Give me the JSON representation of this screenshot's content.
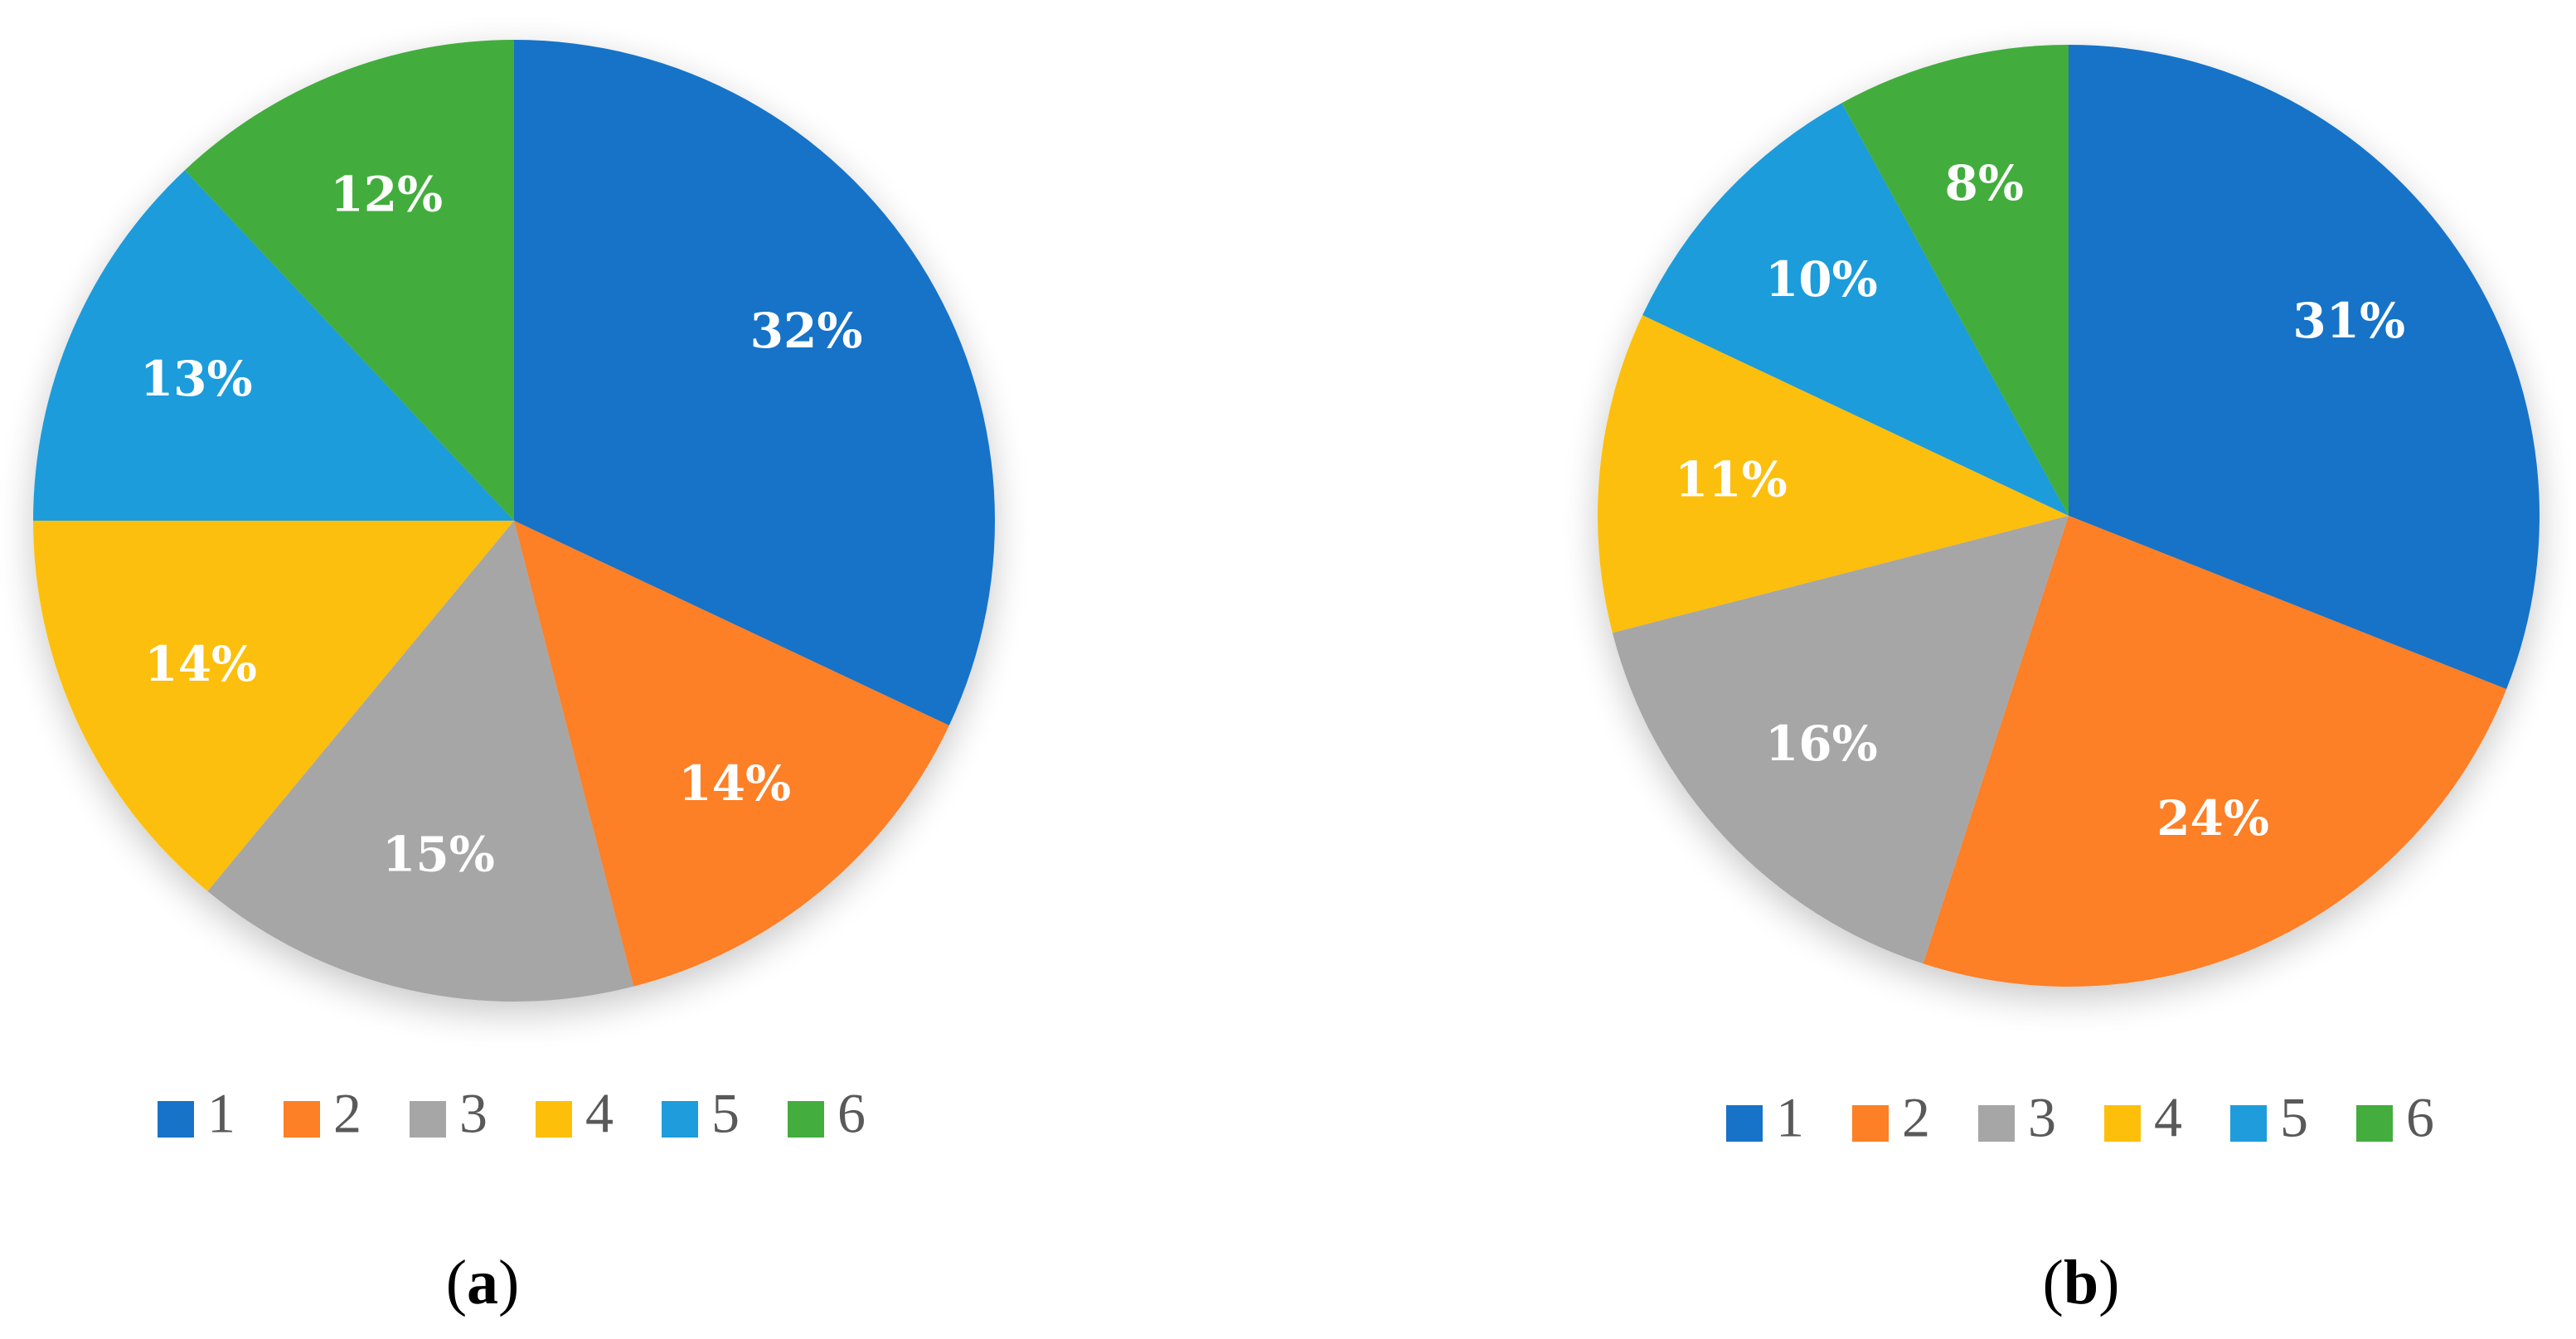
{
  "colors": {
    "1": "#1773c8",
    "2": "#fd7f26",
    "3": "#a6a6a6",
    "4": "#fdbf0a",
    "5": "#1e9cdb",
    "6": "#43ad3d"
  },
  "chart_data": [
    {
      "type": "pie",
      "caption": {
        "open": "(",
        "letter": "a",
        "close": ")"
      },
      "legend": {
        "position": "bottom",
        "entries": [
          "1",
          "2",
          "3",
          "4",
          "5",
          "6"
        ]
      },
      "slices": [
        {
          "name": "1",
          "value": 32,
          "label": "32%"
        },
        {
          "name": "2",
          "value": 14,
          "label": "14%"
        },
        {
          "name": "3",
          "value": 15,
          "label": "15%"
        },
        {
          "name": "4",
          "value": 14,
          "label": "14%"
        },
        {
          "name": "5",
          "value": 13,
          "label": "13%"
        },
        {
          "name": "6",
          "value": 12,
          "label": "12%"
        }
      ]
    },
    {
      "type": "pie",
      "caption": {
        "open": "(",
        "letter": "b",
        "close": ")"
      },
      "legend": {
        "position": "bottom",
        "entries": [
          "1",
          "2",
          "3",
          "4",
          "5",
          "6"
        ]
      },
      "slices": [
        {
          "name": "1",
          "value": 31,
          "label": "31%"
        },
        {
          "name": "2",
          "value": 24,
          "label": "24%"
        },
        {
          "name": "3",
          "value": 16,
          "label": "16%"
        },
        {
          "name": "4",
          "value": 11,
          "label": "11%"
        },
        {
          "name": "5",
          "value": 10,
          "label": "10%"
        },
        {
          "name": "6",
          "value": 8,
          "label": "8%"
        }
      ]
    }
  ]
}
